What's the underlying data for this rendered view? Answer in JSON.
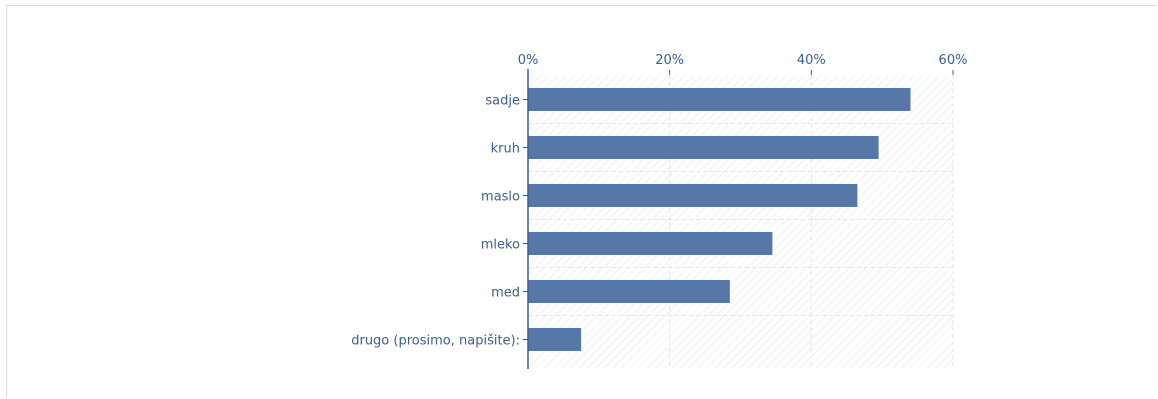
{
  "chart_data": {
    "type": "bar",
    "orientation": "horizontal",
    "categories": [
      "sadje",
      "kruh",
      "maslo",
      "mleko",
      "med",
      "drugo (prosimo, napišite):"
    ],
    "values": [
      54,
      49.5,
      46.5,
      34.5,
      28.5,
      7.5
    ],
    "unit": "%",
    "xlim": [
      0,
      60
    ],
    "xticks": [
      "0%",
      "20%",
      "40%",
      "60%"
    ],
    "title": "",
    "xlabel": "",
    "ylabel": "",
    "grid": true,
    "x_axis_position": "top",
    "colors": {
      "bar": "#5578a8",
      "axis": "#3a5f92",
      "text": "#3a5f92",
      "grid": "#dfe6ef",
      "hatch": "#eef1f6",
      "frame": "#d6dde8"
    }
  }
}
